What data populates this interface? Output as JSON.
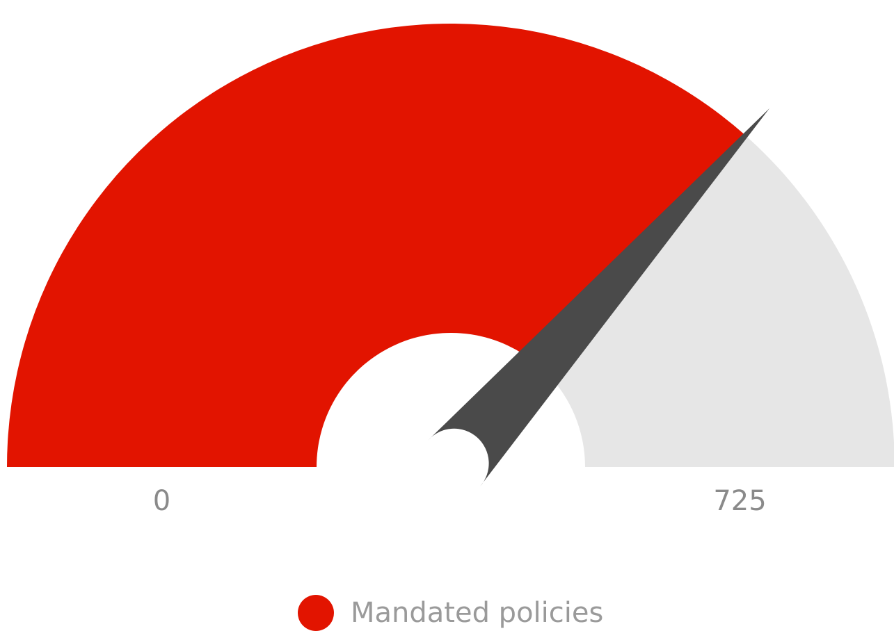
{
  "chart_data": {
    "type": "gauge",
    "series": [
      {
        "name": "Mandated policies",
        "value": 530
      }
    ],
    "min": 0,
    "max": 725,
    "min_label": "0",
    "max_label": "725",
    "legend_placement": "bottom-center",
    "colors": {
      "value_fill": "#e21400",
      "track": "#e6e6e6",
      "needle": "#4a4a4a"
    }
  },
  "legend": {
    "items": [
      {
        "label": "Mandated policies",
        "color": "#e21400"
      }
    ]
  }
}
